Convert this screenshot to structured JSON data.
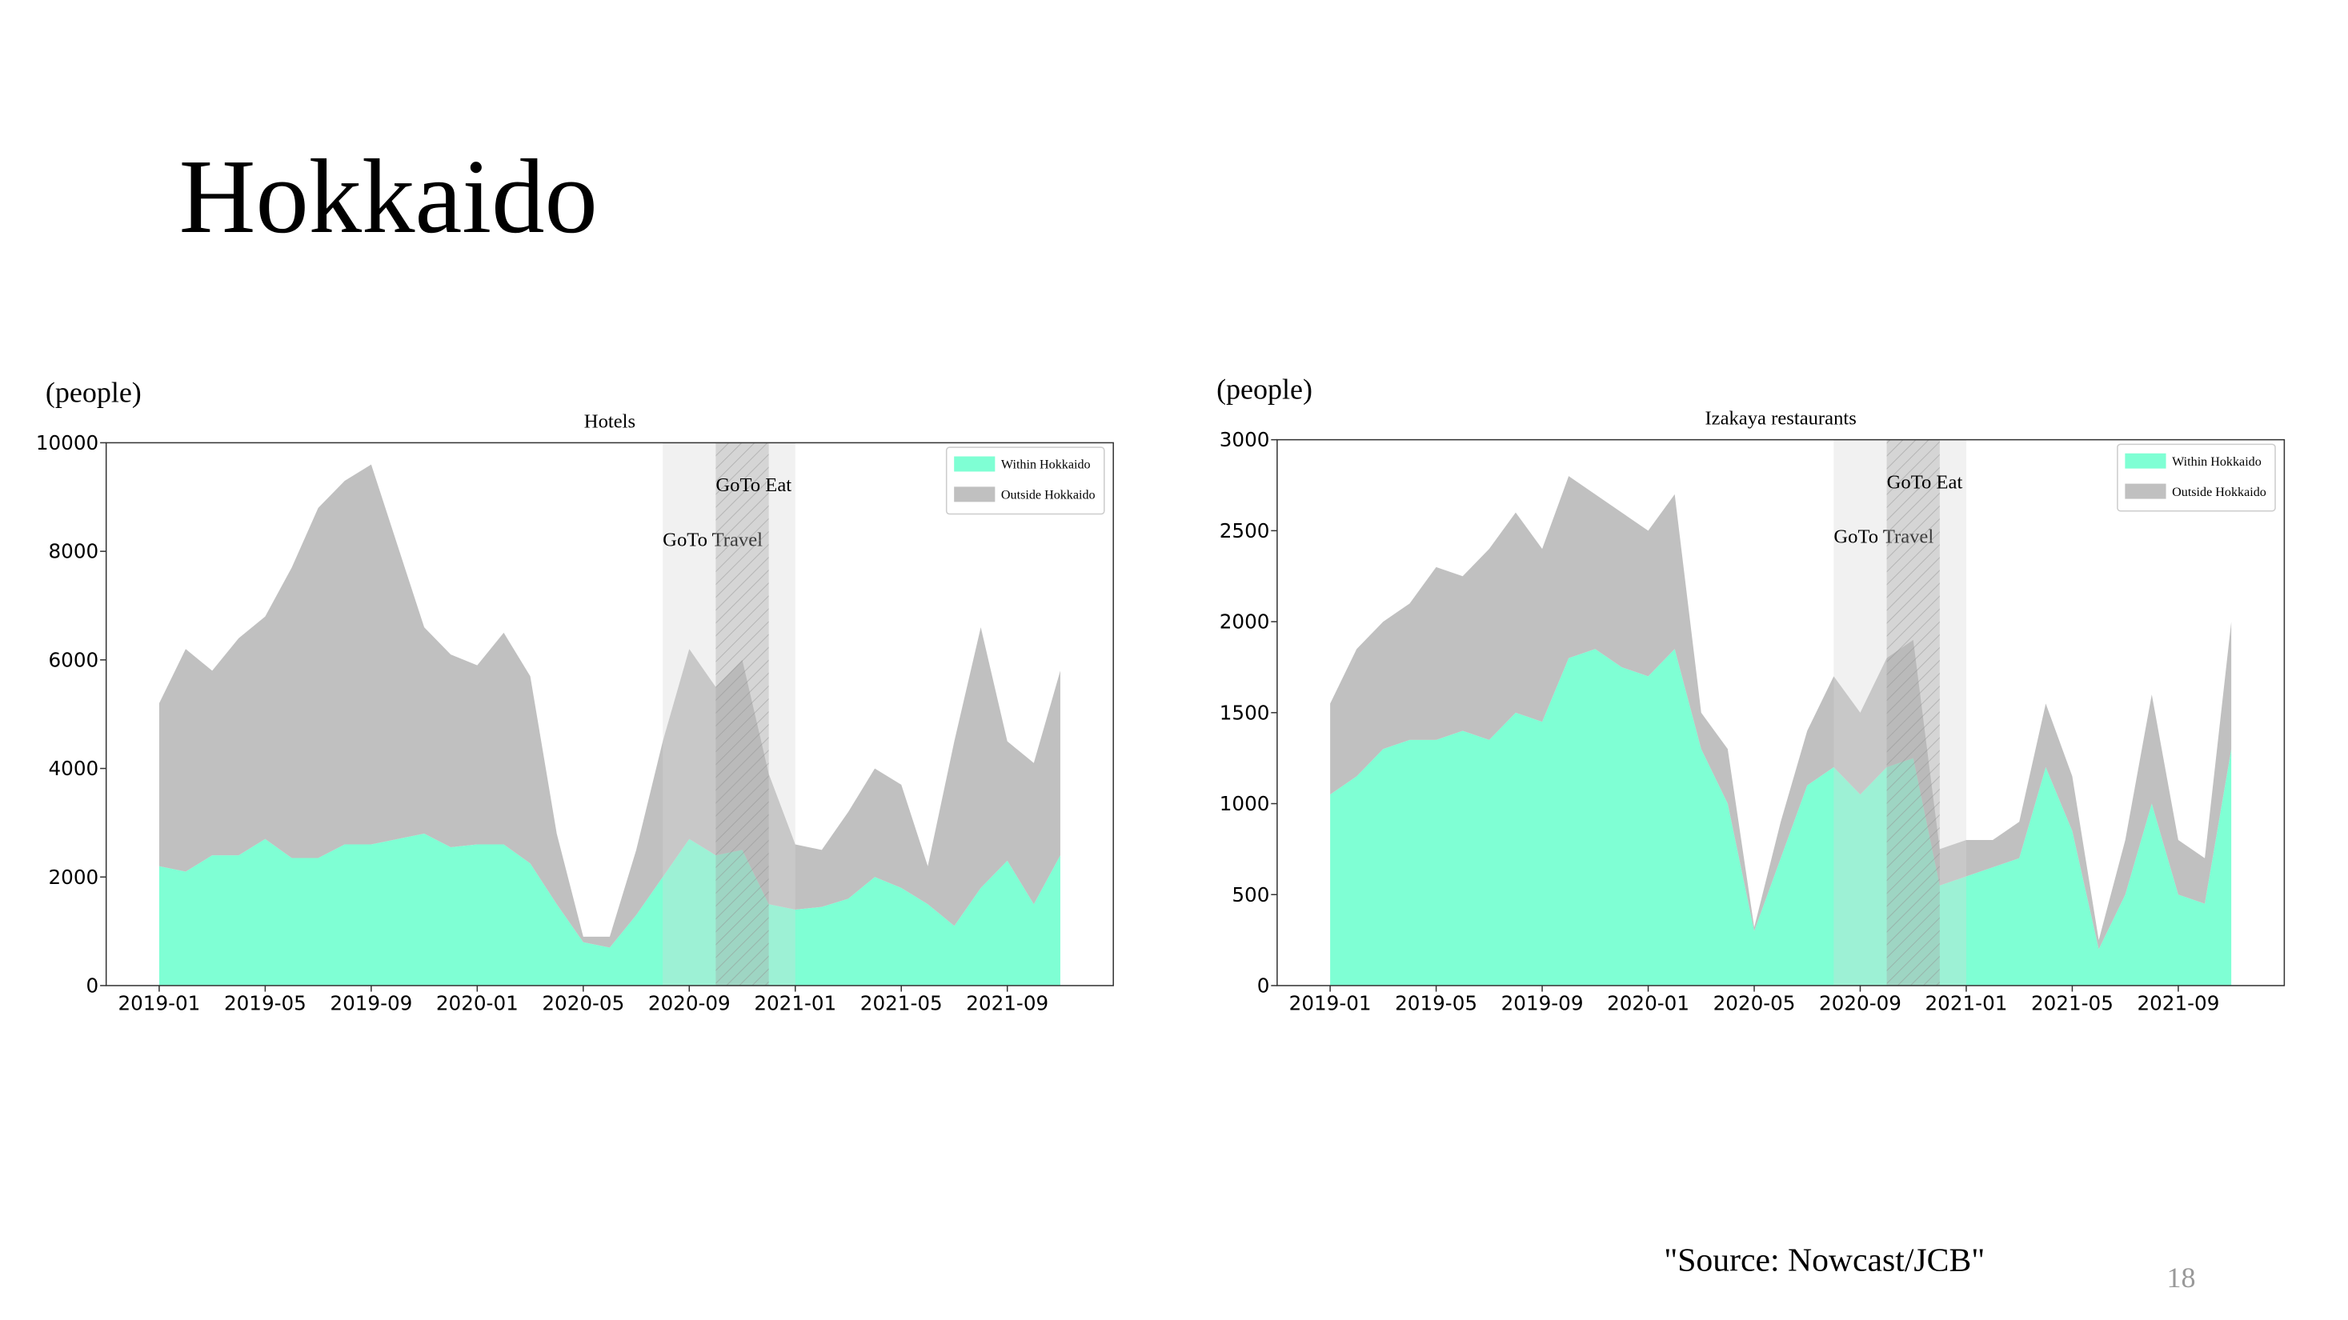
{
  "slide_title": "Hokkaido",
  "source": "\"Source: Nowcast/JCB\"",
  "page_number": 18,
  "chart_data": [
    {
      "type": "area",
      "stacked": true,
      "title": "Hotels",
      "y_label": "(people)",
      "x": [
        "2019-01",
        "2019-02",
        "2019-03",
        "2019-04",
        "2019-05",
        "2019-06",
        "2019-07",
        "2019-08",
        "2019-09",
        "2019-10",
        "2019-11",
        "2019-12",
        "2020-01",
        "2020-02",
        "2020-03",
        "2020-04",
        "2020-05",
        "2020-06",
        "2020-07",
        "2020-08",
        "2020-09",
        "2020-10",
        "2020-11",
        "2020-12",
        "2021-01",
        "2021-02",
        "2021-03",
        "2021-04",
        "2021-05",
        "2021-06",
        "2021-07",
        "2021-08",
        "2021-09",
        "2021-10",
        "2021-11"
      ],
      "series": [
        {
          "name": "Within Hokkaido",
          "color": "#7fffd4",
          "values": [
            2200,
            2100,
            2400,
            2400,
            2700,
            2350,
            2350,
            2600,
            2600,
            2700,
            2800,
            2550,
            2600,
            2600,
            2250,
            1500,
            800,
            700,
            1300,
            2000,
            2700,
            2400,
            2500,
            1500,
            1400,
            1450,
            1600,
            2000,
            1800,
            1500,
            1100,
            1800,
            2300,
            1500,
            2400
          ]
        },
        {
          "name": "Outside Hokkaido",
          "color": "#c0c0c0",
          "values": [
            3000,
            4100,
            3400,
            4000,
            4100,
            5350,
            6450,
            6700,
            7000,
            5400,
            3800,
            3550,
            3300,
            3900,
            3450,
            1300,
            100,
            200,
            1200,
            2500,
            3500,
            3100,
            3500,
            2400,
            1200,
            1050,
            1600,
            2000,
            1900,
            700,
            3400,
            4800,
            2200,
            2600,
            3400
          ]
        }
      ],
      "spans": [
        {
          "label": "GoTo Travel",
          "start": "2020-08",
          "end": "2021-01",
          "hatch": false
        },
        {
          "label": "GoTo Eat",
          "start": "2020-10",
          "end": "2020-12",
          "hatch": true
        }
      ],
      "xlim": [
        "2018-11",
        "2022-01"
      ],
      "xticks": [
        "2019-01",
        "2019-05",
        "2019-09",
        "2020-01",
        "2020-05",
        "2020-09",
        "2021-01",
        "2021-05",
        "2021-09"
      ],
      "ylim": [
        0,
        10000
      ],
      "yticks": [
        0,
        2000,
        4000,
        6000,
        8000,
        10000
      ],
      "legend": "upper right"
    },
    {
      "type": "area",
      "stacked": true,
      "title": "Izakaya restaurants",
      "y_label": "(people)",
      "x": [
        "2019-01",
        "2019-02",
        "2019-03",
        "2019-04",
        "2019-05",
        "2019-06",
        "2019-07",
        "2019-08",
        "2019-09",
        "2019-10",
        "2019-11",
        "2019-12",
        "2020-01",
        "2020-02",
        "2020-03",
        "2020-04",
        "2020-05",
        "2020-06",
        "2020-07",
        "2020-08",
        "2020-09",
        "2020-10",
        "2020-11",
        "2020-12",
        "2021-01",
        "2021-02",
        "2021-03",
        "2021-04",
        "2021-05",
        "2021-06",
        "2021-07",
        "2021-08",
        "2021-09",
        "2021-10",
        "2021-11"
      ],
      "series": [
        {
          "name": "Within Hokkaido",
          "color": "#7fffd4",
          "values": [
            1050,
            1150,
            1300,
            1350,
            1350,
            1400,
            1350,
            1500,
            1450,
            1800,
            1850,
            1750,
            1700,
            1850,
            1300,
            1000,
            300,
            700,
            1100,
            1200,
            1050,
            1200,
            1250,
            550,
            600,
            650,
            700,
            1200,
            850,
            200,
            500,
            1000,
            500,
            450,
            1300
          ]
        },
        {
          "name": "Outside Hokkaido",
          "color": "#c0c0c0",
          "values": [
            500,
            700,
            700,
            750,
            950,
            850,
            1050,
            1100,
            950,
            1000,
            850,
            850,
            800,
            850,
            200,
            300,
            20,
            200,
            300,
            500,
            450,
            600,
            650,
            200,
            200,
            150,
            200,
            350,
            300,
            50,
            300,
            600,
            300,
            250,
            700
          ]
        }
      ],
      "spans": [
        {
          "label": "GoTo Travel",
          "start": "2020-08",
          "end": "2021-01",
          "hatch": false
        },
        {
          "label": "GoTo Eat",
          "start": "2020-10",
          "end": "2020-12",
          "hatch": true
        }
      ],
      "xlim": [
        "2018-11",
        "2022-01"
      ],
      "xticks": [
        "2019-01",
        "2019-05",
        "2019-09",
        "2020-01",
        "2020-05",
        "2020-09",
        "2021-01",
        "2021-05",
        "2021-09"
      ],
      "ylim": [
        0,
        3000
      ],
      "yticks": [
        0,
        500,
        1000,
        1500,
        2000,
        2500,
        3000
      ],
      "legend": "upper right"
    }
  ]
}
